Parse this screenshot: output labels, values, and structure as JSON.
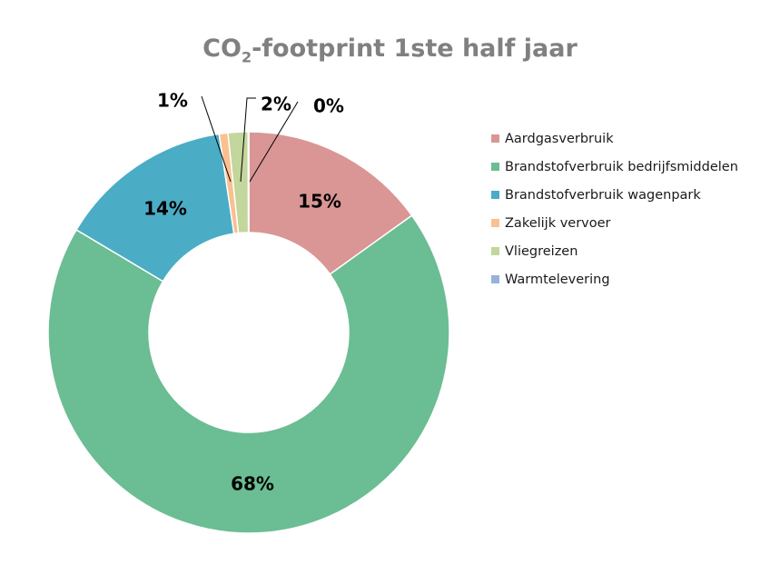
{
  "chart_data": {
    "type": "pie",
    "variant": "donut",
    "title_main": "CO",
    "title_sub": "2",
    "title_rest": "-footprint 1ste half jaar",
    "slices": [
      {
        "name": "Aardgasverbruik",
        "value": 15,
        "label": "15%",
        "color": "#d99694"
      },
      {
        "name": "Brandstofverbruik bedrijfsmiddelen",
        "value": 68,
        "label": "68%",
        "color": "#6bbd93"
      },
      {
        "name": "Brandstofverbruik wagenpark",
        "value": 14,
        "label": "14%",
        "color": "#4bacc6"
      },
      {
        "name": "Zakelijk vervoer",
        "value": 0.7,
        "label": "1%",
        "color": "#fac090"
      },
      {
        "name": "Vliegreizen",
        "value": 1.6,
        "label": "2%",
        "color": "#c3d69b"
      },
      {
        "name": "Warmtelevering",
        "value": 0.05,
        "label": "0%",
        "color": "#95b3d7"
      }
    ],
    "legend_position": "right"
  }
}
